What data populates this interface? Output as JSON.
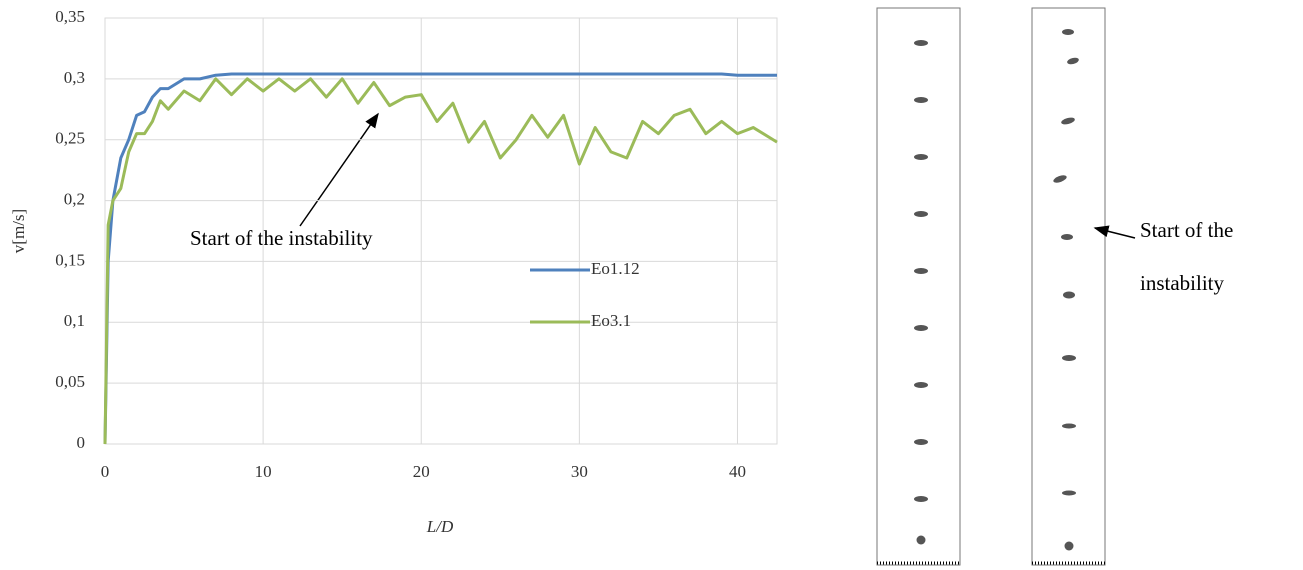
{
  "chart_data": {
    "type": "line",
    "x_label": "L/D",
    "y_label": "v[m/s]",
    "annotation": "Start of the instability",
    "x": [
      0,
      0.2,
      0.5,
      1,
      1.5,
      2,
      2.5,
      3,
      3.5,
      4,
      5,
      6,
      7,
      8,
      9,
      10,
      11,
      12,
      13,
      14,
      15,
      16,
      17,
      18,
      19,
      20,
      21,
      22,
      23,
      24,
      25,
      26,
      27,
      28,
      29,
      30,
      31,
      32,
      33,
      34,
      35,
      36,
      37,
      38,
      39,
      40,
      41,
      42.5
    ],
    "series": [
      {
        "name": "Eo1.12",
        "color": "#4f81bd",
        "values": [
          0,
          0.15,
          0.2,
          0.235,
          0.25,
          0.27,
          0.273,
          0.285,
          0.292,
          0.292,
          0.3,
          0.3,
          0.303,
          0.304,
          0.304,
          0.304,
          0.304,
          0.304,
          0.304,
          0.304,
          0.304,
          0.304,
          0.304,
          0.304,
          0.304,
          0.304,
          0.304,
          0.304,
          0.304,
          0.304,
          0.304,
          0.304,
          0.304,
          0.304,
          0.304,
          0.304,
          0.304,
          0.304,
          0.304,
          0.304,
          0.304,
          0.304,
          0.304,
          0.304,
          0.304,
          0.303,
          0.303,
          0.303
        ]
      },
      {
        "name": "Eo3.1",
        "color": "#9bbb59",
        "values": [
          0,
          0.18,
          0.2,
          0.21,
          0.24,
          0.255,
          0.255,
          0.265,
          0.282,
          0.275,
          0.29,
          0.282,
          0.3,
          0.287,
          0.3,
          0.29,
          0.3,
          0.29,
          0.3,
          0.285,
          0.3,
          0.28,
          0.297,
          0.278,
          0.285,
          0.287,
          0.265,
          0.28,
          0.248,
          0.265,
          0.235,
          0.25,
          0.27,
          0.252,
          0.27,
          0.23,
          0.26,
          0.24,
          0.235,
          0.265,
          0.255,
          0.27,
          0.275,
          0.255,
          0.265,
          0.255,
          0.26,
          0.248
        ]
      }
    ],
    "xlim": [
      0,
      42.5
    ],
    "xticks": [
      0,
      10,
      20,
      30,
      40
    ],
    "ylim": [
      0,
      0.35
    ],
    "yticks": [
      0,
      {
        "value": 0.05,
        "label": "0,05"
      },
      {
        "value": 0.1,
        "label": "0,1"
      },
      {
        "value": 0.15,
        "label": "0,15"
      },
      {
        "value": 0.2,
        "label": "0,2"
      },
      {
        "value": 0.25,
        "label": "0,25"
      },
      {
        "value": 0.3,
        "label": "0,3"
      },
      {
        "value": 0.35,
        "label": "0,35"
      }
    ],
    "grid": true
  },
  "figure_annotation": {
    "lines": [
      "Start of the",
      "instability"
    ]
  }
}
